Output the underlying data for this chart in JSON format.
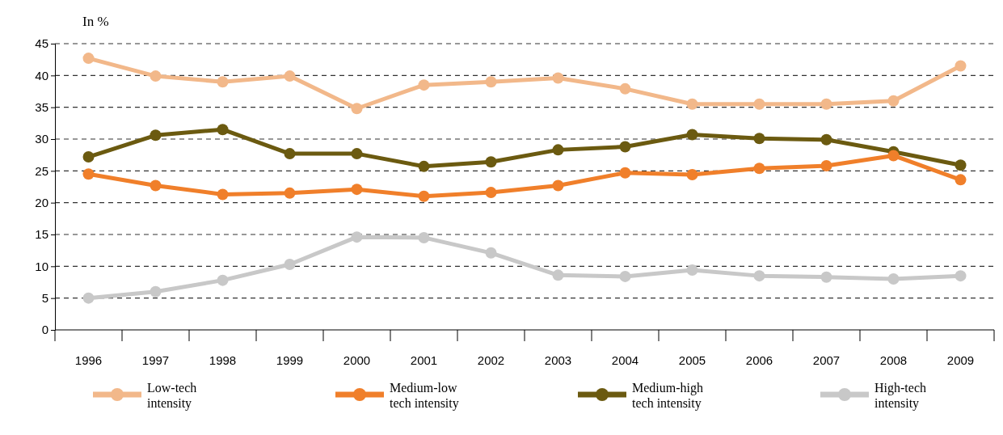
{
  "chart_data": {
    "type": "line",
    "ylabel": "In %",
    "categories": [
      "1996",
      "1997",
      "1998",
      "1999",
      "2000",
      "2001",
      "2002",
      "2003",
      "2004",
      "2005",
      "2006",
      "2007",
      "2008",
      "2009"
    ],
    "ylim": [
      0,
      45
    ],
    "yticks": [
      0,
      5,
      10,
      15,
      20,
      25,
      30,
      35,
      40,
      45
    ],
    "grid": "y",
    "legend": "bottom",
    "marker": "circle",
    "line_style": "solid",
    "series": [
      {
        "name": "Low-tech intensity",
        "color": "#f2b88a",
        "values": [
          42.7,
          39.9,
          39.0,
          39.9,
          34.8,
          38.5,
          39.0,
          39.6,
          37.9,
          35.5,
          35.5,
          35.5,
          36.0,
          41.5
        ]
      },
      {
        "name": "Medium-low tech intensity",
        "color": "#f07f2a",
        "values": [
          24.5,
          22.7,
          21.3,
          21.5,
          22.1,
          21.0,
          21.6,
          22.7,
          24.7,
          24.4,
          25.4,
          25.8,
          27.4,
          23.6
        ]
      },
      {
        "name": "Medium-high tech intensity",
        "color": "#6b5a10",
        "values": [
          27.2,
          30.6,
          31.5,
          27.7,
          27.7,
          25.7,
          26.4,
          28.3,
          28.8,
          30.7,
          30.1,
          29.9,
          28.0,
          25.9
        ]
      },
      {
        "name": "High-tech intensity",
        "color": "#c8c8c8",
        "values": [
          5.0,
          6.0,
          7.8,
          10.3,
          14.6,
          14.5,
          12.1,
          8.6,
          8.4,
          9.4,
          8.5,
          8.3,
          8.0,
          8.5
        ]
      }
    ]
  }
}
